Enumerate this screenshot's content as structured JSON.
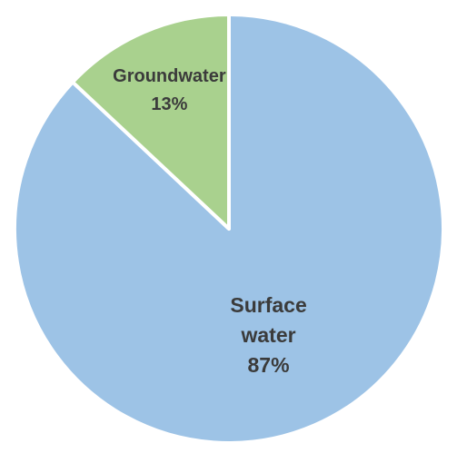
{
  "chart_data": {
    "type": "pie",
    "title": "",
    "start": "12 o'clock",
    "direction": "clockwise",
    "slices": [
      {
        "name": "Surface water",
        "value": 87,
        "label_lines": [
          "Surface",
          "water",
          "87%"
        ],
        "color": "#9DC3E6"
      },
      {
        "name": "Groundwater",
        "value": 13,
        "label_lines": [
          "Groundwater",
          "13%"
        ],
        "color": "#A9D18E"
      }
    ],
    "slice_border_color": "#FFFFFF",
    "label_color": "#3B3B3B",
    "legend": "none"
  }
}
